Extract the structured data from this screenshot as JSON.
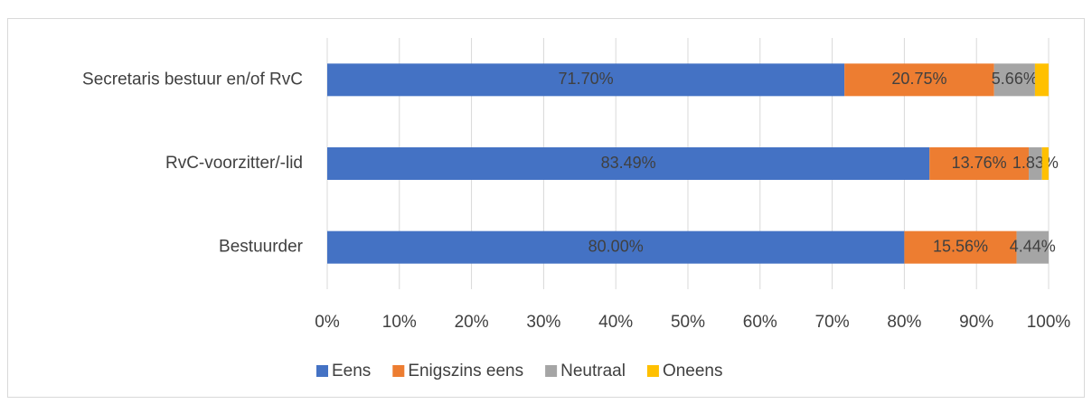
{
  "chart_data": {
    "type": "stacked-bar-horizontal",
    "categories": [
      "Secretaris bestuur en/of RvC",
      "RvC-voorzitter/-lid",
      "Bestuurder"
    ],
    "series": [
      {
        "name": "Eens",
        "color": "#4472c4",
        "values": [
          71.7,
          83.49,
          80.0
        ],
        "value_labels": [
          "71.70%",
          "83.49%",
          "80.00%"
        ]
      },
      {
        "name": "Enigszins eens",
        "color": "#ed7d31",
        "values": [
          20.75,
          13.76,
          15.56
        ],
        "value_labels": [
          "20.75%",
          "13.76%",
          "15.56%"
        ]
      },
      {
        "name": "Neutraal",
        "color": "#a5a5a5",
        "values": [
          5.66,
          1.83,
          4.44
        ],
        "value_labels": [
          "5.66%",
          "1.83%",
          "4.44%"
        ]
      },
      {
        "name": "Oneens",
        "color": "#ffc000",
        "values": [
          1.89,
          0.92,
          0
        ],
        "value_labels": [
          null,
          null,
          null
        ]
      }
    ],
    "xlim": [
      0,
      100
    ],
    "xticks": [
      {
        "value": 0,
        "label": "0%"
      },
      {
        "value": 10,
        "label": "10%"
      },
      {
        "value": 20,
        "label": "20%"
      },
      {
        "value": 30,
        "label": "30%"
      },
      {
        "value": 40,
        "label": "40%"
      },
      {
        "value": 50,
        "label": "50%"
      },
      {
        "value": 60,
        "label": "60%"
      },
      {
        "value": 70,
        "label": "70%"
      },
      {
        "value": 80,
        "label": "80%"
      },
      {
        "value": 90,
        "label": "90%"
      },
      {
        "value": 100,
        "label": "100%"
      }
    ],
    "grid": true,
    "legend": "bottom"
  }
}
